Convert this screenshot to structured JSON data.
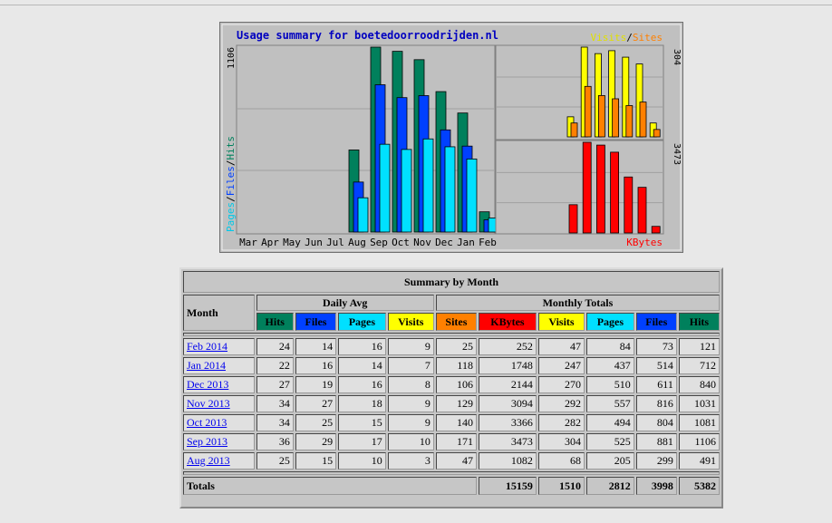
{
  "chart_data": {
    "type": "bar",
    "title": "Usage summary for boetedoorroodrijden.nl",
    "categories": [
      "Mar",
      "Apr",
      "May",
      "Jun",
      "Jul",
      "Aug",
      "Sep",
      "Oct",
      "Nov",
      "Dec",
      "Jan",
      "Feb"
    ],
    "left_panel": {
      "ylabel_parts": [
        "Pages",
        "/",
        "Files",
        "/",
        "Hits"
      ],
      "ymax_label": "1106",
      "ymax": 1106,
      "series": [
        {
          "name": "Hits",
          "color": "#00805c",
          "values": [
            0,
            0,
            0,
            0,
            0,
            491,
            1106,
            1081,
            1031,
            840,
            712,
            121
          ]
        },
        {
          "name": "Files",
          "color": "#0040ff",
          "values": [
            0,
            0,
            0,
            0,
            0,
            299,
            881,
            804,
            816,
            611,
            514,
            73
          ]
        },
        {
          "name": "Pages",
          "color": "#00e0ff",
          "values": [
            0,
            0,
            0,
            0,
            0,
            205,
            525,
            494,
            557,
            510,
            437,
            84
          ]
        }
      ]
    },
    "right_top_panel": {
      "legend_parts": [
        "Visits",
        "/",
        "Sites"
      ],
      "ymax_label": "304",
      "ymax": 304,
      "series": [
        {
          "name": "Visits",
          "color": "#ffff00",
          "values": [
            0,
            0,
            0,
            0,
            0,
            68,
            304,
            282,
            292,
            270,
            247,
            47
          ]
        },
        {
          "name": "Sites",
          "color": "#ff8000",
          "values": [
            0,
            0,
            0,
            0,
            0,
            47,
            171,
            140,
            129,
            106,
            118,
            25
          ]
        }
      ]
    },
    "right_bottom_panel": {
      "legend": "KBytes",
      "ymax_label": "3473",
      "ymax": 3473,
      "series": [
        {
          "name": "KBytes",
          "color": "#ff0000",
          "values": [
            0,
            0,
            0,
            0,
            0,
            1082,
            3473,
            3366,
            3094,
            2144,
            1748,
            252
          ]
        }
      ]
    },
    "colors": {
      "panel_bg": "#c0c0c0",
      "grid": "#a0a0a0",
      "title": "#0000c0"
    }
  },
  "table": {
    "title": "Summary by Month",
    "month_header": "Month",
    "daily_avg_header": "Daily Avg",
    "monthly_totals_header": "Monthly Totals",
    "daily_cols": [
      "Hits",
      "Files",
      "Pages",
      "Visits"
    ],
    "monthly_cols": [
      "Sites",
      "KBytes",
      "Visits",
      "Pages",
      "Files",
      "Hits"
    ],
    "rows": [
      {
        "month": "Feb 2014",
        "d_hits": "24",
        "d_files": "14",
        "d_pages": "16",
        "d_visits": "9",
        "sites": "25",
        "kbytes": "252",
        "visits": "47",
        "pages": "84",
        "files": "73",
        "hits": "121"
      },
      {
        "month": "Jan 2014",
        "d_hits": "22",
        "d_files": "16",
        "d_pages": "14",
        "d_visits": "7",
        "sites": "118",
        "kbytes": "1748",
        "visits": "247",
        "pages": "437",
        "files": "514",
        "hits": "712"
      },
      {
        "month": "Dec 2013",
        "d_hits": "27",
        "d_files": "19",
        "d_pages": "16",
        "d_visits": "8",
        "sites": "106",
        "kbytes": "2144",
        "visits": "270",
        "pages": "510",
        "files": "611",
        "hits": "840"
      },
      {
        "month": "Nov 2013",
        "d_hits": "34",
        "d_files": "27",
        "d_pages": "18",
        "d_visits": "9",
        "sites": "129",
        "kbytes": "3094",
        "visits": "292",
        "pages": "557",
        "files": "816",
        "hits": "1031"
      },
      {
        "month": "Oct 2013",
        "d_hits": "34",
        "d_files": "25",
        "d_pages": "15",
        "d_visits": "9",
        "sites": "140",
        "kbytes": "3366",
        "visits": "282",
        "pages": "494",
        "files": "804",
        "hits": "1081"
      },
      {
        "month": "Sep 2013",
        "d_hits": "36",
        "d_files": "29",
        "d_pages": "17",
        "d_visits": "10",
        "sites": "171",
        "kbytes": "3473",
        "visits": "304",
        "pages": "525",
        "files": "881",
        "hits": "1106"
      },
      {
        "month": "Aug 2013",
        "d_hits": "25",
        "d_files": "15",
        "d_pages": "10",
        "d_visits": "3",
        "sites": "47",
        "kbytes": "1082",
        "visits": "68",
        "pages": "205",
        "files": "299",
        "hits": "491"
      }
    ],
    "totals": {
      "label": "Totals",
      "kbytes": "15159",
      "visits": "1510",
      "pages": "2812",
      "files": "3998",
      "hits": "5382"
    }
  }
}
